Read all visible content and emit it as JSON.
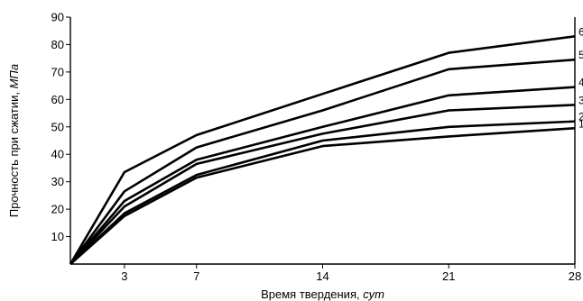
{
  "chart_data": {
    "type": "line",
    "xlabel": "Время твердения, ",
    "xlabel_unit": "сут",
    "ylabel": "Прочность при сжатии, ",
    "ylabel_unit": "МПа",
    "x": [
      0,
      3,
      7,
      14,
      21,
      28
    ],
    "x_ticks": [
      "3",
      "7",
      "14",
      "21",
      "28"
    ],
    "x_tick_values": [
      3,
      7,
      14,
      21,
      28
    ],
    "y_ticks": [
      "10",
      "20",
      "30",
      "40",
      "50",
      "60",
      "70",
      "80",
      "90"
    ],
    "y_tick_values": [
      10,
      20,
      30,
      40,
      50,
      60,
      70,
      80,
      90
    ],
    "xlim": [
      0,
      28
    ],
    "ylim": [
      0,
      90
    ],
    "grid": false,
    "series": [
      {
        "name": "1",
        "values": [
          0,
          17.5,
          31.5,
          43,
          46.5,
          49.5
        ]
      },
      {
        "name": "2",
        "values": [
          0,
          18.5,
          32.5,
          45,
          50,
          52
        ]
      },
      {
        "name": "3",
        "values": [
          0,
          21,
          36.5,
          47.5,
          56,
          58
        ]
      },
      {
        "name": "4",
        "values": [
          0,
          23,
          38,
          50,
          61.5,
          64.5
        ]
      },
      {
        "name": "5",
        "values": [
          0,
          26.5,
          42.5,
          56,
          71,
          74.5
        ]
      },
      {
        "name": "6",
        "values": [
          0,
          33.5,
          47,
          62,
          77,
          83
        ]
      }
    ],
    "line_color": "#000000"
  }
}
